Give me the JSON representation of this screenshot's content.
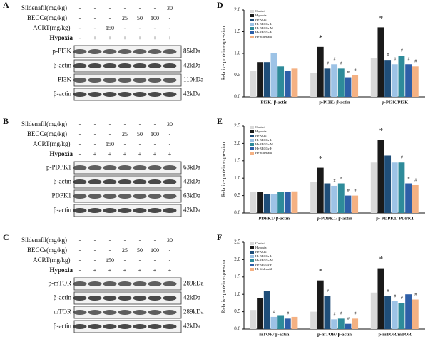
{
  "blots": [
    {
      "panel_label": "A",
      "treatments": [
        {
          "label": "Sildenafil(mg/kg)",
          "lanes": [
            "-",
            "-",
            "-",
            "-",
            "-",
            "-",
            "30"
          ]
        },
        {
          "label": "BECCs(mg/kg)",
          "lanes": [
            "-",
            "-",
            "-",
            "25",
            "50",
            "100",
            "-"
          ]
        },
        {
          "label": "ACRT(mg/kg)",
          "lanes": [
            "-",
            "-",
            "150",
            "-",
            "-",
            "-",
            "-"
          ]
        },
        {
          "label": "Hypoxia",
          "lanes": [
            "-",
            "+",
            "+",
            "+",
            "+",
            "+",
            "+"
          ]
        }
      ],
      "bands": [
        {
          "label": "p-PI3K",
          "size": "85kDa"
        },
        {
          "label": "β-actin",
          "size": "42kDa"
        },
        {
          "label": "PI3K",
          "size": "110kDa"
        },
        {
          "label": "β-actin",
          "size": "42kDa"
        }
      ]
    },
    {
      "panel_label": "B",
      "treatments": [
        {
          "label": "Sildenafil(mg/kg)",
          "lanes": [
            "-",
            "-",
            "-",
            "-",
            "-",
            "-",
            "30"
          ]
        },
        {
          "label": "BECCs(mg/kg)",
          "lanes": [
            "-",
            "-",
            "-",
            "25",
            "50",
            "100",
            "-"
          ]
        },
        {
          "label": "ACRT(mg/kg)",
          "lanes": [
            "-",
            "-",
            "150",
            "-",
            "-",
            "-",
            "-"
          ]
        },
        {
          "label": "Hypoxia",
          "lanes": [
            "-",
            "+",
            "+",
            "+",
            "+",
            "+",
            "+"
          ]
        }
      ],
      "bands": [
        {
          "label": "p-PDPK1",
          "size": "63kDa"
        },
        {
          "label": "β-actin",
          "size": "42kDa"
        },
        {
          "label": "PDPK1",
          "size": "63kDa"
        },
        {
          "label": "β-actin",
          "size": "42kDa"
        }
      ]
    },
    {
      "panel_label": "C",
      "treatments": [
        {
          "label": "Sildenafil(mg/kg)",
          "lanes": [
            "-",
            "-",
            "-",
            "-",
            "-",
            "-",
            "30"
          ]
        },
        {
          "label": "BECCs(mg/kg)",
          "lanes": [
            "-",
            "-",
            "-",
            "25",
            "50",
            "100",
            "-"
          ]
        },
        {
          "label": "ACRT(mg/kg)",
          "lanes": [
            "-",
            "-",
            "150",
            "-",
            "-",
            "-",
            "-"
          ]
        },
        {
          "label": "Hypoxia",
          "lanes": [
            "-",
            "+",
            "+",
            "+",
            "+",
            "+",
            "+"
          ]
        }
      ],
      "bands": [
        {
          "label": "p-mTOR",
          "size": "289kDa"
        },
        {
          "label": "β-actin",
          "size": "42kDa"
        },
        {
          "label": "mTOR",
          "size": "289kDa"
        },
        {
          "label": "β-actin",
          "size": "42kDa"
        }
      ]
    }
  ],
  "chart_data": [
    {
      "type": "bar",
      "panel_label": "D",
      "y_label": "Relative protein expression",
      "categories": [
        "PI3K/ β-actin",
        "p-PI3K/ β-actin",
        "p-PI3K/PI3K"
      ],
      "ylim": [
        0,
        2.0
      ],
      "yticks": [
        {
          "value": 0,
          "label": "0.0"
        },
        {
          "value": 0.5,
          "label": "0.5"
        },
        {
          "value": 1,
          "label": "1.0"
        },
        {
          "value": 1.5,
          "label": "1.5"
        },
        {
          "value": 2,
          "label": "2.0"
        }
      ],
      "series": [
        {
          "name": "Control",
          "color": "#d9d9d9",
          "values": [
            0.6,
            0.55,
            0.9
          ]
        },
        {
          "name": "Hypoxia",
          "color": "#1a1a1a",
          "values": [
            0.8,
            1.15,
            1.6
          ]
        },
        {
          "name": "H+ACRT",
          "color": "#1f4e79",
          "values": [
            0.8,
            0.65,
            0.85
          ]
        },
        {
          "name": "H+BECCs-L",
          "color": "#9dc3e6",
          "values": [
            1.0,
            0.75,
            0.75
          ]
        },
        {
          "name": "H+BECCs-M",
          "color": "#2e8b9a",
          "values": [
            0.7,
            0.65,
            0.95
          ]
        },
        {
          "name": "H+BECCs-H",
          "color": "#2e5fa8",
          "values": [
            0.6,
            0.45,
            0.75
          ]
        },
        {
          "name": "H+Sildenafil",
          "color": "#f4b183",
          "values": [
            0.65,
            0.5,
            0.7
          ]
        }
      ],
      "annotations": [
        {
          "text": "*",
          "category": "p-PI3K/ β-actin",
          "series": "Hypoxia"
        },
        {
          "text": "#",
          "category": "p-PI3K/ β-actin",
          "series": "H+ACRT"
        },
        {
          "text": "#",
          "category": "p-PI3K/ β-actin",
          "series": "H+BECCs-L"
        },
        {
          "text": "#",
          "category": "p-PI3K/ β-actin",
          "series": "H+BECCs-M"
        },
        {
          "text": "#",
          "category": "p-PI3K/ β-actin",
          "series": "H+BECCs-H"
        },
        {
          "text": "#",
          "category": "p-PI3K/ β-actin",
          "series": "H+Sildenafil"
        },
        {
          "text": "*",
          "category": "p-PI3K/PI3K",
          "series": "Hypoxia"
        },
        {
          "text": "#",
          "category": "p-PI3K/PI3K",
          "series": "H+ACRT"
        },
        {
          "text": "#",
          "category": "p-PI3K/PI3K",
          "series": "H+BECCs-L"
        },
        {
          "text": "#",
          "category": "p-PI3K/PI3K",
          "series": "H+BECCs-M"
        },
        {
          "text": "#",
          "category": "p-PI3K/PI3K",
          "series": "H+BECCs-H"
        },
        {
          "text": "#",
          "category": "p-PI3K/PI3K",
          "series": "H+Sildenafil"
        }
      ]
    },
    {
      "type": "bar",
      "panel_label": "E",
      "y_label": "Relative protein expression",
      "categories": [
        "PDPK1/ β-actin",
        "p-PDPK1/ β-actin",
        "p- PDPK1/ PDPK1"
      ],
      "ylim": [
        0,
        2.5
      ],
      "yticks": [
        {
          "value": 0,
          "label": "0.0"
        },
        {
          "value": 0.5,
          "label": "0.5"
        },
        {
          "value": 1,
          "label": "1.0"
        },
        {
          "value": 1.5,
          "label": "1.5"
        },
        {
          "value": 2,
          "label": "2.0"
        },
        {
          "value": 2.5,
          "label": "2.5"
        }
      ],
      "series": [
        {
          "name": "Control",
          "color": "#d9d9d9",
          "values": [
            0.6,
            0.9,
            1.45
          ]
        },
        {
          "name": "Hypoxia",
          "color": "#1a1a1a",
          "values": [
            0.6,
            1.3,
            2.1
          ]
        },
        {
          "name": "H+ACRT",
          "color": "#1f4e79",
          "values": [
            0.55,
            0.85,
            1.65
          ]
        },
        {
          "name": "H+BECCs-L",
          "color": "#9dc3e6",
          "values": [
            0.55,
            0.78,
            1.45
          ]
        },
        {
          "name": "H+BECCs-M",
          "color": "#2e8b9a",
          "values": [
            0.6,
            0.85,
            1.45
          ]
        },
        {
          "name": "H+BECCs-H",
          "color": "#2e5fa8",
          "values": [
            0.6,
            0.5,
            0.85
          ]
        },
        {
          "name": "H+Sildenafil",
          "color": "#f4b183",
          "values": [
            0.62,
            0.5,
            0.8
          ]
        }
      ],
      "annotations": [
        {
          "text": "*",
          "category": "p-PDPK1/ β-actin",
          "series": "Hypoxia"
        },
        {
          "text": "#",
          "category": "p-PDPK1/ β-actin",
          "series": "H+BECCs-L"
        },
        {
          "text": "#",
          "category": "p-PDPK1/ β-actin",
          "series": "H+BECCs-M"
        },
        {
          "text": "#",
          "category": "p-PDPK1/ β-actin",
          "series": "H+BECCs-H"
        },
        {
          "text": "#",
          "category": "p-PDPK1/ β-actin",
          "series": "H+Sildenafil"
        },
        {
          "text": "*",
          "category": "p- PDPK1/ PDPK1",
          "series": "Hypoxia"
        },
        {
          "text": "#",
          "category": "p- PDPK1/ PDPK1",
          "series": "H+BECCs-M"
        },
        {
          "text": "#",
          "category": "p- PDPK1/ PDPK1",
          "series": "H+BECCs-H"
        },
        {
          "text": "#",
          "category": "p- PDPK1/ PDPK1",
          "series": "H+Sildenafil"
        }
      ]
    },
    {
      "type": "bar",
      "panel_label": "F",
      "y_label": "Relative protein expression",
      "categories": [
        "mTOR/ β-actin",
        "p-mTOR/ β-actin",
        "p-mTOR/mTOR"
      ],
      "ylim": [
        0,
        2.5
      ],
      "yticks": [
        {
          "value": 0,
          "label": "0.0"
        },
        {
          "value": 0.5,
          "label": "0.5"
        },
        {
          "value": 1,
          "label": "1.0"
        },
        {
          "value": 1.5,
          "label": "1.5"
        },
        {
          "value": 2,
          "label": "2.0"
        },
        {
          "value": 2.5,
          "label": "2.5"
        }
      ],
      "series": [
        {
          "name": "Control",
          "color": "#d9d9d9",
          "values": [
            0.55,
            0.5,
            1.05
          ]
        },
        {
          "name": "Hypoxia",
          "color": "#1a1a1a",
          "values": [
            0.9,
            1.4,
            1.75
          ]
        },
        {
          "name": "H+ACRT",
          "color": "#1f4e79",
          "values": [
            1.1,
            0.95,
            0.95
          ]
        },
        {
          "name": "H+BECCs-L",
          "color": "#9dc3e6",
          "values": [
            0.35,
            0.28,
            0.8
          ]
        },
        {
          "name": "H+BECCs-M",
          "color": "#2e8b9a",
          "values": [
            0.4,
            0.3,
            0.75
          ]
        },
        {
          "name": "H+BECCs-H",
          "color": "#2e5fa8",
          "values": [
            0.3,
            0.15,
            1.0
          ]
        },
        {
          "name": "H+Sildenafil",
          "color": "#f4b183",
          "values": [
            0.35,
            0.3,
            0.85
          ]
        }
      ],
      "annotations": [
        {
          "text": "#",
          "category": "mTOR/ β-actin",
          "series": "H+BECCs-L"
        },
        {
          "text": "#",
          "category": "mTOR/ β-actin",
          "series": "H+BECCs-H"
        },
        {
          "text": "*",
          "category": "p-mTOR/ β-actin",
          "series": "Hypoxia"
        },
        {
          "text": "#",
          "category": "p-mTOR/ β-actin",
          "series": "H+ACRT"
        },
        {
          "text": "#",
          "category": "p-mTOR/ β-actin",
          "series": "H+BECCs-L"
        },
        {
          "text": "#",
          "category": "p-mTOR/ β-actin",
          "series": "H+BECCs-M"
        },
        {
          "text": "#",
          "category": "p-mTOR/ β-actin",
          "series": "H+BECCs-H"
        },
        {
          "text": "#",
          "category": "p-mTOR/ β-actin",
          "series": "H+Sildenafil"
        },
        {
          "text": "*",
          "category": "p-mTOR/mTOR",
          "series": "Hypoxia"
        },
        {
          "text": "#",
          "category": "p-mTOR/mTOR",
          "series": "H+ACRT"
        },
        {
          "text": "#",
          "category": "p-mTOR/mTOR",
          "series": "H+BECCs-L"
        },
        {
          "text": "#",
          "category": "p-mTOR/mTOR",
          "series": "H+BECCs-M"
        },
        {
          "text": "#",
          "category": "p-mTOR/mTOR",
          "series": "H+Sildenafil"
        }
      ]
    }
  ]
}
